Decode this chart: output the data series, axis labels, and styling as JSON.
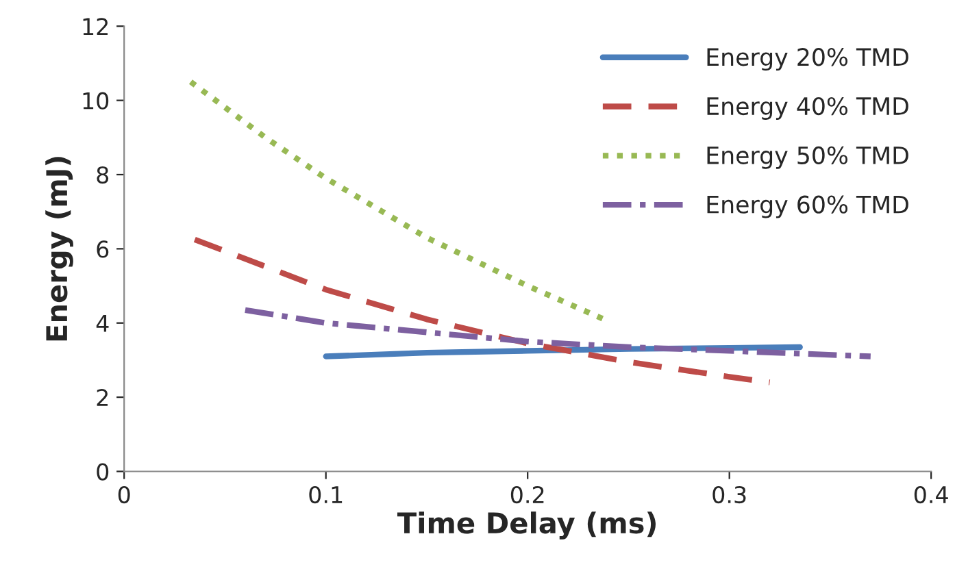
{
  "chart_data": {
    "type": "line",
    "xlabel": "Time Delay (ms)",
    "ylabel": "Energy (mJ)",
    "xlim": [
      0,
      0.4
    ],
    "xticks": [
      0,
      0.1,
      0.2,
      0.3,
      0.4
    ],
    "ylim": [
      0,
      12
    ],
    "yticks": [
      0,
      2,
      4,
      6,
      8,
      10,
      12
    ],
    "grid": false,
    "legend": "top right",
    "series": [
      {
        "name": "Energy 20% TMD",
        "color": "#4a7ebb",
        "line_style": "solid",
        "x": [
          0.1,
          0.15,
          0.2,
          0.25,
          0.3,
          0.335
        ],
        "values": [
          3.1,
          3.2,
          3.25,
          3.3,
          3.33,
          3.35
        ]
      },
      {
        "name": "Energy 40% TMD",
        "color": "#be4b48",
        "line_style": "dashed",
        "x": [
          0.035,
          0.1,
          0.15,
          0.2,
          0.25,
          0.3,
          0.32
        ],
        "values": [
          6.25,
          4.9,
          4.1,
          3.45,
          2.95,
          2.55,
          2.4
        ]
      },
      {
        "name": "Energy 50% TMD",
        "color": "#98b954",
        "line_style": "dotted",
        "x": [
          0.033,
          0.07,
          0.1,
          0.15,
          0.2,
          0.24
        ],
        "values": [
          10.5,
          9.0,
          7.9,
          6.3,
          5.0,
          4.05
        ]
      },
      {
        "name": "Energy 60% TMD",
        "color": "#7d60a0",
        "line_style": "dashdot",
        "x": [
          0.06,
          0.1,
          0.15,
          0.2,
          0.25,
          0.3,
          0.37
        ],
        "values": [
          4.35,
          4.0,
          3.75,
          3.5,
          3.35,
          3.25,
          3.1
        ]
      }
    ]
  }
}
